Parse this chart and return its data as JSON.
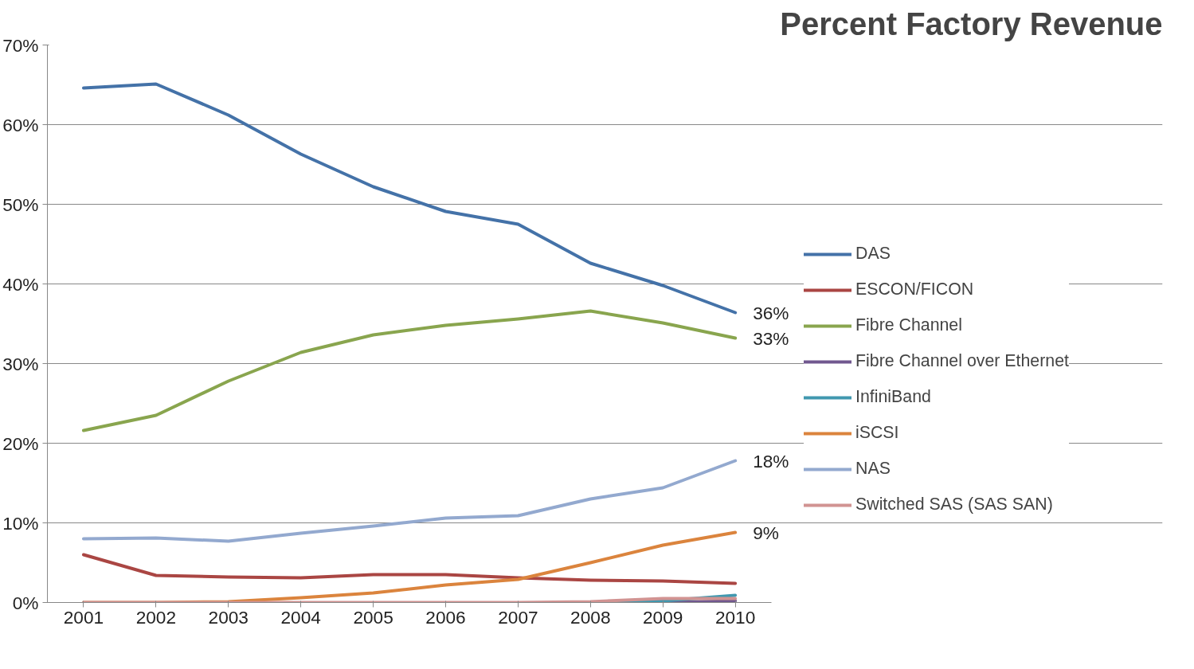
{
  "chart_data": {
    "type": "line",
    "title": "Percent Factory Revenue",
    "categories": [
      "2001",
      "2002",
      "2003",
      "2004",
      "2005",
      "2006",
      "2007",
      "2008",
      "2009",
      "2010"
    ],
    "series": [
      {
        "name": "DAS",
        "color": "#4472a8",
        "values": [
          64.6,
          65.1,
          61.2,
          56.3,
          52.2,
          49.1,
          47.5,
          42.6,
          39.8,
          36.4
        ],
        "value_labels": [
          null,
          null,
          null,
          null,
          null,
          null,
          null,
          null,
          null,
          "36%"
        ]
      },
      {
        "name": "ESCON/FICON",
        "color": "#aa4643",
        "values": [
          6.0,
          3.4,
          3.2,
          3.1,
          3.5,
          3.5,
          3.1,
          2.8,
          2.7,
          2.4
        ]
      },
      {
        "name": "Fibre Channel",
        "color": "#89a54e",
        "values": [
          21.6,
          23.5,
          27.8,
          31.4,
          33.6,
          34.8,
          35.6,
          36.6,
          35.1,
          33.2
        ],
        "value_labels": [
          null,
          null,
          null,
          null,
          null,
          null,
          null,
          null,
          null,
          "33%"
        ]
      },
      {
        "name": "Fibre Channel over Ethernet",
        "color": "#71588f",
        "values": [
          null,
          null,
          null,
          null,
          null,
          null,
          null,
          null,
          0,
          0.2
        ]
      },
      {
        "name": "InfiniBand",
        "color": "#4198af",
        "values": [
          null,
          null,
          null,
          null,
          null,
          null,
          null,
          0,
          0.2,
          0.9
        ]
      },
      {
        "name": "iSCSI",
        "color": "#db843d",
        "values": [
          0,
          0,
          0.1,
          0.6,
          1.2,
          2.2,
          2.9,
          5.0,
          7.2,
          8.8
        ],
        "value_labels": [
          null,
          null,
          null,
          null,
          null,
          null,
          null,
          null,
          null,
          "9%"
        ]
      },
      {
        "name": "NAS",
        "color": "#93a9cf",
        "values": [
          8.0,
          8.1,
          7.7,
          8.7,
          9.6,
          10.6,
          10.9,
          13.0,
          14.4,
          17.8
        ],
        "value_labels": [
          null,
          null,
          null,
          null,
          null,
          null,
          null,
          null,
          null,
          "18%"
        ]
      },
      {
        "name": "Switched SAS (SAS SAN)",
        "color": "#d19392",
        "values": [
          0,
          0,
          0,
          0,
          0,
          0,
          0,
          0.1,
          0.5,
          0.5
        ]
      }
    ],
    "ylim": [
      0,
      70
    ],
    "yticks": [
      {
        "value": 0,
        "label": "0%"
      },
      {
        "value": 10,
        "label": "10%"
      },
      {
        "value": 20,
        "label": "20%"
      },
      {
        "value": 30,
        "label": "30%"
      },
      {
        "value": 40,
        "label": "40%"
      },
      {
        "value": 50,
        "label": "50%"
      },
      {
        "value": 60,
        "label": "60%"
      },
      {
        "value": 70,
        "label": "70%"
      }
    ],
    "grid": "y",
    "legend": "right",
    "marker": "none",
    "line_style": "solid"
  }
}
